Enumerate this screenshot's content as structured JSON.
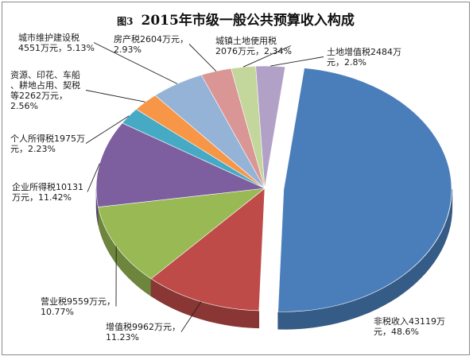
{
  "chart_data": {
    "type": "pie",
    "figure_label": "图3",
    "title": "2015年市级一般公共预算收入构成",
    "slices": [
      {
        "name": "非税收入",
        "value": 43119,
        "percent": 48.6,
        "color": "#4a7ebb",
        "label_lines": [
          "非税收入43119万",
          "元，48.6%"
        ]
      },
      {
        "name": "增值税",
        "value": 9962,
        "percent": 11.23,
        "color": "#be4b48",
        "label_lines": [
          "增值税9962万元，",
          "11.23%"
        ]
      },
      {
        "name": "营业税",
        "value": 9559,
        "percent": 10.77,
        "color": "#98b954",
        "label_lines": [
          "营业税9559万元，",
          "10.77%"
        ]
      },
      {
        "name": "企业所得税",
        "value": 10131,
        "percent": 11.42,
        "color": "#7d5fa0",
        "label_lines": [
          "企业所得税10131",
          "万元，11.42%"
        ]
      },
      {
        "name": "个人所得税",
        "value": 1975,
        "percent": 2.23,
        "color": "#46aac5",
        "label_lines": [
          "个人所得税1975万",
          "元，2.23%"
        ]
      },
      {
        "name": "资源、印花、车船、耕地占用、契税等",
        "value": 2262,
        "percent": 2.56,
        "color": "#f79646",
        "label_lines": [
          "资源、印花、车船",
          "、耕地占用、契税",
          "等2262万元，",
          "2.56%"
        ]
      },
      {
        "name": "城市维护建设税",
        "value": 4551,
        "percent": 5.13,
        "color": "#95b3d7",
        "label_lines": [
          "城市维护建设税",
          "4551万元，5.13%"
        ]
      },
      {
        "name": "房产税",
        "value": 2604,
        "percent": 2.93,
        "color": "#d99694",
        "label_lines": [
          "房产税2604万元，",
          "2.93%"
        ]
      },
      {
        "name": "城镇土地使用税",
        "value": 2076,
        "percent": 2.34,
        "color": "#c3d69b",
        "label_lines": [
          "城镇土地使用税",
          "2076万元，2.34%"
        ]
      },
      {
        "name": "土地增值税",
        "value": 2484,
        "percent": 2.8,
        "color": "#b2a1c7",
        "label_lines": [
          "土地增值税2484万",
          "元，2.8%"
        ]
      }
    ]
  }
}
